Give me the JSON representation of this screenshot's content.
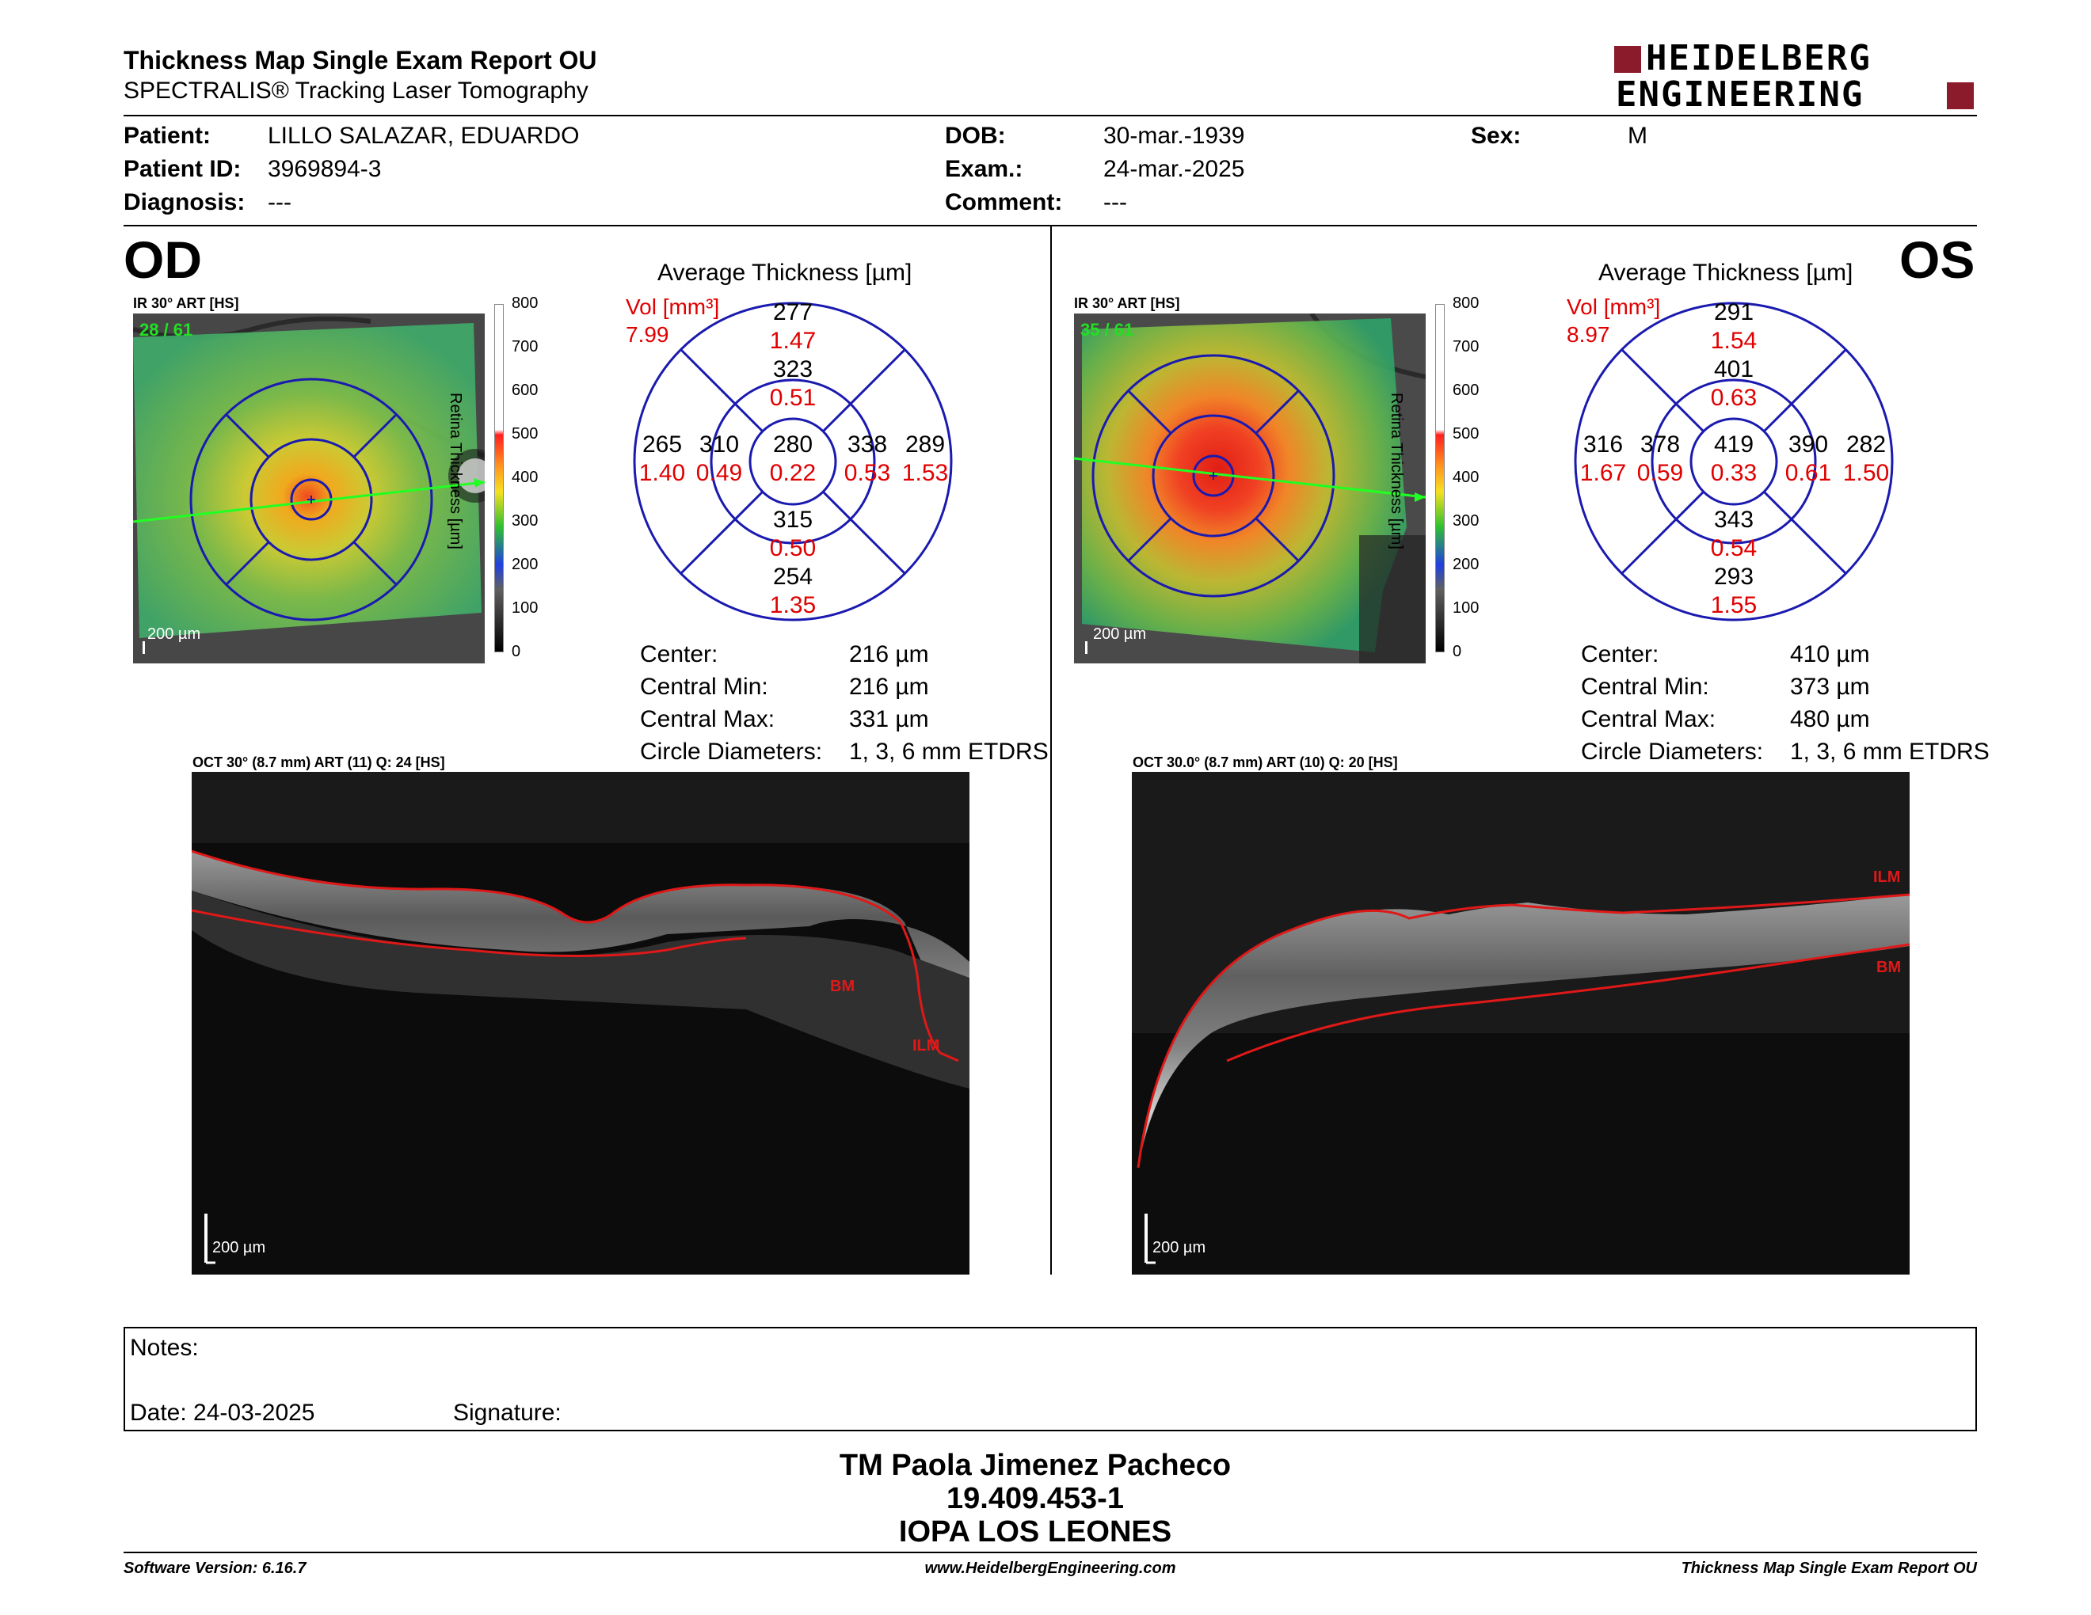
{
  "header": {
    "title": "Thickness Map Single Exam Report OU",
    "subtitle": "SPECTRALIS® Tracking Laser Tomography",
    "logo_line1": "HEIDELBERG",
    "logo_line2": "ENGINEERING"
  },
  "patient": {
    "patient_label": "Patient:",
    "patient_value": "LILLO SALAZAR, EDUARDO",
    "id_label": "Patient ID:",
    "id_value": "3969894-3",
    "diagnosis_label": "Diagnosis:",
    "diagnosis_value": "---",
    "dob_label": "DOB:",
    "dob_value": "30-mar.-1939",
    "exam_label": "Exam.:",
    "exam_value": "24-mar.-2025",
    "comment_label": "Comment:",
    "comment_value": "---",
    "sex_label": "Sex:",
    "sex_value": "M"
  },
  "od": {
    "eye_label": "OD",
    "ir_label": "IR 30° ART [HS]",
    "frames": "28 / 61",
    "ir_scale": "200 µm",
    "scale_title": "Retina Thickness [µm]",
    "scale_ticks": [
      "800",
      "700",
      "600",
      "500",
      "400",
      "300",
      "200",
      "100",
      "0"
    ],
    "avg_title": "Average Thickness [µm]",
    "vol_label": "Vol [mm³]",
    "vol_value": "7.99",
    "sectors": {
      "superior_outer": {
        "t": "277",
        "v": "1.47"
      },
      "superior_inner": {
        "t": "323",
        "v": "0.51"
      },
      "center": {
        "t": "280",
        "v": "0.22"
      },
      "temporal_outer": {
        "t": "265",
        "v": "1.40"
      },
      "temporal_inner": {
        "t": "310",
        "v": "0.49"
      },
      "nasal_inner": {
        "t": "338",
        "v": "0.53"
      },
      "nasal_outer": {
        "t": "289",
        "v": "1.53"
      },
      "inferior_inner": {
        "t": "315",
        "v": "0.50"
      },
      "inferior_outer": {
        "t": "254",
        "v": "1.35"
      }
    },
    "stats": [
      {
        "label": "Center:",
        "value": "216 µm"
      },
      {
        "label": "Central Min:",
        "value": "216 µm"
      },
      {
        "label": "Central Max:",
        "value": "331 µm"
      },
      {
        "label": "Circle Diameters:",
        "value": "1, 3, 6 mm ETDRS"
      }
    ],
    "oct_label": "OCT 30° (8.7 mm) ART (11) Q: 24 [HS]",
    "oct_scale": "200 µm",
    "ilm_label": "ILM",
    "bm_label": "BM"
  },
  "os": {
    "eye_label": "OS",
    "ir_label": "IR 30° ART [HS]",
    "frames": "35 / 61",
    "ir_scale": "200 µm",
    "scale_title": "Retina Thickness [µm]",
    "scale_ticks": [
      "800",
      "700",
      "600",
      "500",
      "400",
      "300",
      "200",
      "100",
      "0"
    ],
    "avg_title": "Average Thickness [µm]",
    "vol_label": "Vol [mm³]",
    "vol_value": "8.97",
    "sectors": {
      "superior_outer": {
        "t": "291",
        "v": "1.54"
      },
      "superior_inner": {
        "t": "401",
        "v": "0.63"
      },
      "center": {
        "t": "419",
        "v": "0.33"
      },
      "temporal_outer": {
        "t": "316",
        "v": "1.67"
      },
      "temporal_inner": {
        "t": "378",
        "v": "0.59"
      },
      "nasal_inner": {
        "t": "390",
        "v": "0.61"
      },
      "nasal_outer": {
        "t": "282",
        "v": "1.50"
      },
      "inferior_inner": {
        "t": "343",
        "v": "0.54"
      },
      "inferior_outer": {
        "t": "293",
        "v": "1.55"
      }
    },
    "stats": [
      {
        "label": "Center:",
        "value": "410 µm"
      },
      {
        "label": "Central Min:",
        "value": "373 µm"
      },
      {
        "label": "Central Max:",
        "value": "480 µm"
      },
      {
        "label": "Circle Diameters:",
        "value": "1, 3, 6 mm ETDRS"
      }
    ],
    "oct_label": "OCT 30.0° (8.7 mm) ART (10) Q: 20 [HS]",
    "oct_scale": "200 µm",
    "ilm_label": "ILM",
    "bm_label": "BM"
  },
  "notes": {
    "notes_label": "Notes:",
    "date_label": "Date: 24-03-2025",
    "signature_label": "Signature:"
  },
  "signer": {
    "name": "TM Paola Jimenez Pacheco",
    "rut": "19.409.453-1",
    "institution": "IOPA LOS LEONES"
  },
  "footer": {
    "software": "Software Version: 6.16.7",
    "website": "www.HeidelbergEngineering.com",
    "report": "Thickness Map Single Exam Report OU"
  }
}
